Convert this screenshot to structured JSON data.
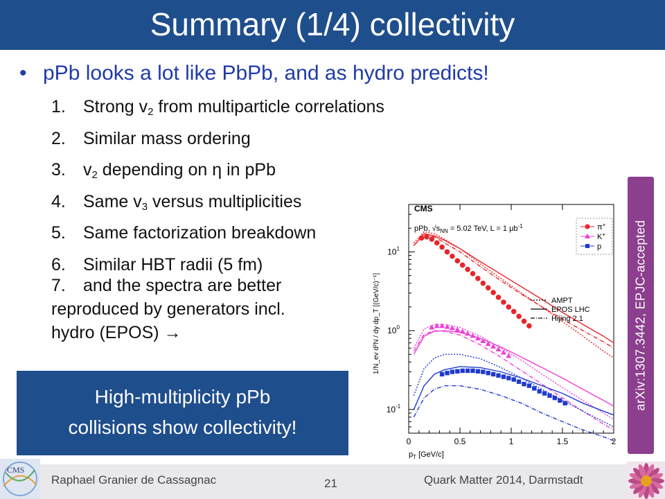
{
  "slide": {
    "title": "Summary (1/4) collectivity",
    "bullet": "pPb looks a lot like PbPb, and as hydro predicts!",
    "bullet_marker": "•",
    "items": [
      {
        "num": "1.",
        "pre": "Strong v",
        "sub": "2",
        "post": " from multiparticle correlations"
      },
      {
        "num": "2.",
        "pre": "Similar mass ordering",
        "sub": "",
        "post": ""
      },
      {
        "num": "3.",
        "pre": "v",
        "sub": "2",
        "post": " depending on η in pPb"
      },
      {
        "num": "4.",
        "pre": "Same v",
        "sub": "3",
        "post": " versus multiplicities"
      },
      {
        "num": "5.",
        "pre": "Same factorization breakdown",
        "sub": "",
        "post": ""
      },
      {
        "num": "6.",
        "pre": "Similar HBT radii (5 fm)",
        "sub": "",
        "post": ""
      }
    ],
    "item7": {
      "num": "7.",
      "line1": "and the spectra are better",
      "line2": "reproduced by generators incl.",
      "line3": "hydro (EPOS) ",
      "arrow": "→"
    },
    "callout_line1": "High-multiplicity pPb",
    "callout_line2": "collisions show collectivity!",
    "arxiv": "arXiv:1307.3442, EPJC-accepted"
  },
  "footer": {
    "author": "Raphael Granier de Cassagnac",
    "page_number": "21",
    "event": "Quark Matter 2014, Darmstadt"
  },
  "colors": {
    "title_bar": "#1f4e8c",
    "bullet_text": "#1f3aa8",
    "arxiv_box": "#8c3f8e",
    "pion": "#e8262a",
    "kaon": "#ee3fd8",
    "proton": "#1f3ad0"
  },
  "chart_data": {
    "type": "scatter",
    "experiment_label": "CMS",
    "collision_label": "pPb, √s",
    "collision_sub": "NN",
    "collision_suffix": " = 5.02 TeV, L = 1 μb",
    "collision_sup": "-1",
    "xlabel": "p",
    "xlabel_sub": "T",
    "xlabel_unit": " [GeV/c]",
    "ylabel": "1/N_ev d²N / dy dp_T [(GeV/c)⁻¹]",
    "xlim": [
      0,
      2
    ],
    "ylim": [
      0.05,
      40
    ],
    "yscale": "log",
    "x_ticks": [
      "0",
      "0.5",
      "1",
      "1.5",
      "2"
    ],
    "y_ticks": [
      {
        "base": "10",
        "exp": "1",
        "value": 10
      },
      {
        "base": "10",
        "exp": "0",
        "value": 1
      },
      {
        "base": "10",
        "exp": "-1",
        "value": 0.1
      }
    ],
    "legend_particles": [
      {
        "name": "π",
        "sup": "+",
        "color": "#e8262a",
        "marker": "circle"
      },
      {
        "name": "K",
        "sup": "+",
        "color": "#ee3fd8",
        "marker": "triangle"
      },
      {
        "name": "p",
        "sup": "",
        "color": "#1f3ad0",
        "marker": "square"
      }
    ],
    "legend_models": [
      {
        "name": "AMPT",
        "dash": "2,2"
      },
      {
        "name": "EPOS LHC",
        "dash": ""
      },
      {
        "name": "Hijing 2.1",
        "dash": "6,2,1,2"
      }
    ],
    "series": [
      {
        "name": "π",
        "color": "#e8262a",
        "marker": "circle",
        "x": [
          0.125,
          0.175,
          0.225,
          0.275,
          0.325,
          0.375,
          0.425,
          0.475,
          0.525,
          0.575,
          0.625,
          0.675,
          0.725,
          0.775,
          0.825,
          0.875,
          0.925,
          0.975,
          1.025,
          1.075,
          1.125,
          1.175
        ],
        "y": [
          15.0,
          15.5,
          14.5,
          13.0,
          11.5,
          10.0,
          8.8,
          7.7,
          6.8,
          6.0,
          5.3,
          4.6,
          4.0,
          3.5,
          3.05,
          2.65,
          2.3,
          2.0,
          1.75,
          1.52,
          1.32,
          1.15
        ]
      },
      {
        "name": "K",
        "color": "#ee3fd8",
        "marker": "triangle",
        "x": [
          0.225,
          0.275,
          0.325,
          0.375,
          0.425,
          0.475,
          0.525,
          0.575,
          0.625,
          0.675,
          0.725,
          0.775,
          0.825,
          0.875,
          0.925,
          0.975
        ],
        "y": [
          1.1,
          1.15,
          1.15,
          1.12,
          1.08,
          1.03,
          0.98,
          0.92,
          0.86,
          0.8,
          0.74,
          0.68,
          0.63,
          0.58,
          0.53,
          0.48
        ]
      },
      {
        "name": "p",
        "color": "#1f3ad0",
        "marker": "square",
        "x": [
          0.325,
          0.375,
          0.425,
          0.475,
          0.525,
          0.575,
          0.625,
          0.675,
          0.725,
          0.775,
          0.825,
          0.875,
          0.925,
          0.975,
          1.025,
          1.075,
          1.125,
          1.175,
          1.225,
          1.275,
          1.325,
          1.375,
          1.425,
          1.475,
          1.525
        ],
        "y": [
          0.28,
          0.29,
          0.3,
          0.305,
          0.31,
          0.31,
          0.31,
          0.305,
          0.3,
          0.29,
          0.28,
          0.27,
          0.26,
          0.25,
          0.24,
          0.225,
          0.21,
          0.2,
          0.185,
          0.17,
          0.16,
          0.15,
          0.14,
          0.13,
          0.12
        ]
      }
    ],
    "model_curves": [
      {
        "particle": "π",
        "model": "EPOS LHC",
        "color": "#e8262a",
        "dash": "",
        "x": [
          0.05,
          0.15,
          0.25,
          0.35,
          0.5,
          0.7,
          0.9,
          1.1,
          1.3,
          1.5,
          1.7,
          1.9,
          2.0
        ],
        "y": [
          12,
          17,
          16,
          14,
          11,
          7.5,
          5.2,
          3.6,
          2.5,
          1.7,
          1.2,
          0.85,
          0.7
        ]
      },
      {
        "particle": "π",
        "model": "AMPT",
        "color": "#e8262a",
        "dash": "2,2",
        "x": [
          0.05,
          0.15,
          0.25,
          0.35,
          0.5,
          0.7,
          0.9,
          1.1,
          1.3,
          1.5,
          1.7,
          1.9,
          2.0
        ],
        "y": [
          13,
          18,
          17,
          14.5,
          11,
          7,
          4.6,
          3.0,
          2.0,
          1.3,
          0.85,
          0.55,
          0.45
        ]
      },
      {
        "particle": "π",
        "model": "Hijing 2.1",
        "color": "#e8262a",
        "dash": "6,2,1,2",
        "x": [
          0.05,
          0.15,
          0.25,
          0.35,
          0.5,
          0.7,
          0.9,
          1.1,
          1.3,
          1.5,
          1.7,
          1.9,
          2.0
        ],
        "y": [
          12,
          16.5,
          15.5,
          13,
          10,
          6.5,
          4.3,
          2.9,
          2.0,
          1.4,
          1.0,
          0.72,
          0.6
        ]
      },
      {
        "particle": "K",
        "model": "EPOS LHC",
        "color": "#ee3fd8",
        "dash": "",
        "x": [
          0.05,
          0.15,
          0.25,
          0.35,
          0.5,
          0.7,
          0.9,
          1.1,
          1.3,
          1.5,
          1.7,
          1.9,
          2.0
        ],
        "y": [
          0.5,
          0.85,
          0.98,
          1.0,
          0.95,
          0.8,
          0.62,
          0.46,
          0.34,
          0.25,
          0.18,
          0.13,
          0.11
        ]
      },
      {
        "particle": "K",
        "model": "AMPT",
        "color": "#ee3fd8",
        "dash": "2,2",
        "x": [
          0.05,
          0.15,
          0.25,
          0.35,
          0.5,
          0.7,
          0.9,
          1.1,
          1.3,
          1.5,
          1.7,
          1.9,
          2.0
        ],
        "y": [
          0.6,
          1.05,
          1.2,
          1.2,
          1.1,
          0.85,
          0.6,
          0.42,
          0.28,
          0.19,
          0.13,
          0.09,
          0.075
        ]
      },
      {
        "particle": "K",
        "model": "Hijing 2.1",
        "color": "#ee3fd8",
        "dash": "6,2,1,2",
        "x": [
          0.05,
          0.15,
          0.25,
          0.35,
          0.5,
          0.7,
          0.9,
          1.1,
          1.3,
          1.5,
          1.7,
          1.9,
          2.0
        ],
        "y": [
          0.55,
          0.9,
          1.0,
          0.98,
          0.88,
          0.66,
          0.46,
          0.31,
          0.21,
          0.14,
          0.095,
          0.065,
          0.055
        ]
      },
      {
        "particle": "p",
        "model": "EPOS LHC",
        "color": "#1f3ad0",
        "dash": "",
        "x": [
          0.05,
          0.15,
          0.25,
          0.35,
          0.5,
          0.7,
          0.9,
          1.1,
          1.3,
          1.5,
          1.7,
          1.9,
          2.0
        ],
        "y": [
          0.1,
          0.2,
          0.28,
          0.32,
          0.35,
          0.34,
          0.3,
          0.25,
          0.2,
          0.16,
          0.12,
          0.095,
          0.085
        ]
      },
      {
        "particle": "p",
        "model": "AMPT",
        "color": "#1f3ad0",
        "dash": "2,2",
        "x": [
          0.05,
          0.15,
          0.25,
          0.35,
          0.5,
          0.7,
          0.9,
          1.1,
          1.3,
          1.5,
          1.7,
          1.9,
          2.0
        ],
        "y": [
          0.15,
          0.33,
          0.45,
          0.5,
          0.5,
          0.44,
          0.34,
          0.25,
          0.18,
          0.13,
          0.095,
          0.07,
          0.06
        ]
      },
      {
        "particle": "p",
        "model": "Hijing 2.1",
        "color": "#1f3ad0",
        "dash": "6,2,1,2",
        "x": [
          0.05,
          0.15,
          0.25,
          0.35,
          0.5,
          0.7,
          0.9,
          1.1,
          1.3,
          1.5,
          1.7,
          1.9,
          2.0
        ],
        "y": [
          0.08,
          0.14,
          0.18,
          0.2,
          0.2,
          0.18,
          0.15,
          0.12,
          0.09,
          0.07,
          0.055,
          0.045,
          0.04
        ]
      }
    ]
  }
}
